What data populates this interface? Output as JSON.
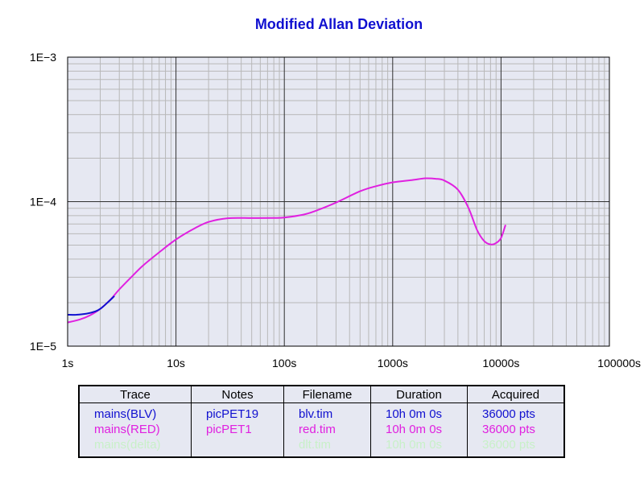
{
  "chart_data": {
    "type": "line",
    "title": "Modified Allan Deviation",
    "xlabel": "",
    "ylabel": "",
    "x_scale": "log",
    "y_scale": "log",
    "xlim": [
      1,
      100000
    ],
    "ylim": [
      1e-05,
      0.001
    ],
    "x_ticks": [
      {
        "value": 1,
        "label": "1s"
      },
      {
        "value": 10,
        "label": "10s"
      },
      {
        "value": 100,
        "label": "100s"
      },
      {
        "value": 1000,
        "label": "1000s"
      },
      {
        "value": 10000,
        "label": "10000s"
      },
      {
        "value": 100000,
        "label": "100000s"
      }
    ],
    "y_ticks": [
      {
        "value": 1e-05,
        "label": "1E−5"
      },
      {
        "value": 0.0001,
        "label": "1E−4"
      },
      {
        "value": 0.001,
        "label": "1E−3"
      }
    ],
    "grid": true,
    "series": [
      {
        "name": "mains(BLV)",
        "color": "#1010d0",
        "x": [
          1.0,
          1.2,
          1.5,
          1.8,
          2.0,
          2.3,
          2.7
        ],
        "y": [
          1.65e-05,
          1.65e-05,
          1.68e-05,
          1.74e-05,
          1.81e-05,
          1.98e-05,
          2.22e-05
        ]
      },
      {
        "name": "mains(RED)",
        "color": "#e020e0",
        "x": [
          1.0,
          1.3,
          1.6,
          2.0,
          2.5,
          3.0,
          4.0,
          5.0,
          7.0,
          10.0,
          15.0,
          20.0,
          30.0,
          50.0,
          80.0,
          100.0,
          150.0,
          200.0,
          300.0,
          500.0,
          700.0,
          1000.0,
          1500.0,
          2000.0,
          2500.0,
          3000.0,
          4000.0,
          5000.0,
          6000.0,
          7000.0,
          8000.0,
          9000.0,
          10000.0,
          11000.0
        ],
        "y": [
          1.46e-05,
          1.53e-05,
          1.63e-05,
          1.81e-05,
          2.11e-05,
          2.47e-05,
          3.08e-05,
          3.63e-05,
          4.46e-05,
          5.47e-05,
          6.56e-05,
          7.24e-05,
          7.68e-05,
          7.7e-05,
          7.71e-05,
          7.77e-05,
          8.13e-05,
          8.71e-05,
          9.85e-05,
          0.000118,
          0.000128,
          0.000136,
          0.000141,
          0.000145,
          0.000144,
          0.00014,
          0.000121,
          9.07e-05,
          6.38e-05,
          5.33e-05,
          5.06e-05,
          5.17e-05,
          5.61e-05,
          6.9e-05
        ]
      }
    ]
  },
  "table": {
    "headers": [
      "Trace",
      "Notes",
      "Filename",
      "Duration",
      "Acquired"
    ],
    "rows": [
      {
        "color": "#1010d0",
        "cells": [
          "mains(BLV)",
          "picPET19",
          "blv.tim",
          "10h 0m 0s",
          "36000 pts"
        ]
      },
      {
        "color": "#e020e0",
        "cells": [
          "mains(RED)",
          "picPET1",
          "red.tim",
          "10h 0m 0s",
          "36000 pts"
        ]
      },
      {
        "color": "#c8f0c8",
        "cells": [
          "mains(delta)",
          "",
          "dlt.tim",
          "10h 0m 0s",
          "36000 pts"
        ]
      }
    ]
  },
  "colors": {
    "title": "#1010d0",
    "plot_background": "#e6e8f2",
    "major_grid": "#303030",
    "minor_grid": "#b8b8b8"
  }
}
